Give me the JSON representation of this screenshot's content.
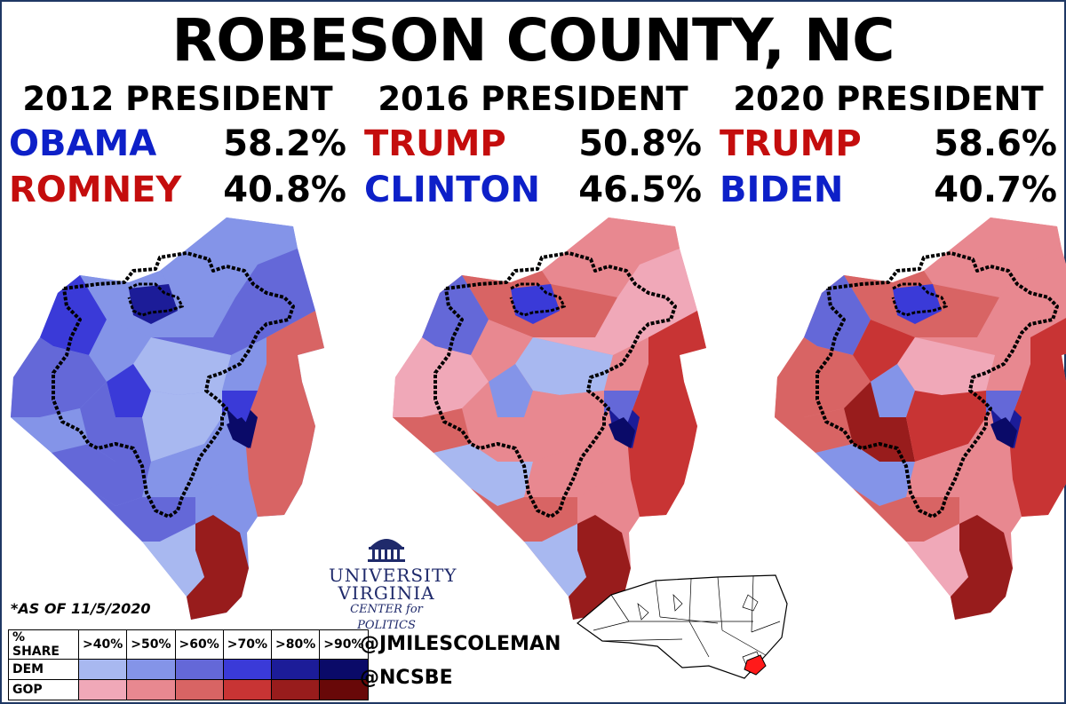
{
  "title": "ROBESON COUNTY, NC",
  "elections": [
    {
      "header": "2012 PRESIDENT",
      "first": {
        "name": "OBAMA",
        "pct": "58.2%",
        "party": "dem"
      },
      "second": {
        "name": "ROMNEY",
        "pct": "40.8%",
        "party": "gop"
      }
    },
    {
      "header": "2016 PRESIDENT",
      "first": {
        "name": "TRUMP",
        "pct": "50.8%",
        "party": "gop"
      },
      "second": {
        "name": "CLINTON",
        "pct": "46.5%",
        "party": "dem"
      }
    },
    {
      "header": "2020 PRESIDENT",
      "first": {
        "name": "TRUMP",
        "pct": "58.6%",
        "party": "gop"
      },
      "second": {
        "name": "BIDEN",
        "pct": "40.7%",
        "party": "dem"
      }
    }
  ],
  "note": "*AS OF 11/5/2020",
  "legend": {
    "header": "% SHARE",
    "bins": [
      ">40%",
      ">50%",
      ">60%",
      ">70%",
      ">80%",
      ">90%"
    ],
    "rows": [
      {
        "label": "DEM",
        "colors": [
          "#a8b8f0",
          "#8494e8",
          "#6468d8",
          "#3a3ad8",
          "#1c1c98",
          "#0a0a68"
        ]
      },
      {
        "label": "GOP",
        "colors": [
          "#f0a8b8",
          "#e88890",
          "#d86464",
          "#c83434",
          "#981c1c",
          "#680808"
        ]
      }
    ]
  },
  "credits": {
    "twitter": "@JMILESCOLEMAN",
    "source": "@NCSBE"
  },
  "logo": {
    "line1": "UNIVERSITY",
    "line2": "VIRGINIA",
    "line3": "CENTER for POLITICS"
  },
  "maps": [
    {
      "year": "2012",
      "precinct_colors": [
        "#8494e8",
        "#8494e8",
        "#1c1c98",
        "#3a3ad8",
        "#8494e8",
        "#6468d8",
        "#a8b8f0",
        "#6468d8",
        "#3a3ad8",
        "#6468d8",
        "#a8b8f0",
        "#8494e8",
        "#6468d8",
        "#8494e8",
        "#d86464",
        "#981c1c",
        "#0a0a68",
        "#6468d8",
        "#a8b8f0",
        "#3a3ad8"
      ]
    },
    {
      "year": "2016",
      "precinct_colors": [
        "#e88890",
        "#d86464",
        "#3a3ad8",
        "#6468d8",
        "#e88890",
        "#f0a8b8",
        "#a8b8f0",
        "#f0a8b8",
        "#8494e8",
        "#e88890",
        "#e88890",
        "#d86464",
        "#a8b8f0",
        "#e88890",
        "#c83434",
        "#981c1c",
        "#1c1c98",
        "#d86464",
        "#a8b8f0",
        "#6468d8"
      ]
    },
    {
      "year": "2020",
      "precinct_colors": [
        "#e88890",
        "#d86464",
        "#3a3ad8",
        "#6468d8",
        "#c83434",
        "#e88890",
        "#f0a8b8",
        "#d86464",
        "#8494e8",
        "#981c1c",
        "#c83434",
        "#d86464",
        "#8494e8",
        "#e88890",
        "#c83434",
        "#981c1c",
        "#1c1c98",
        "#d86464",
        "#f0a8b8",
        "#6468d8"
      ]
    }
  ]
}
